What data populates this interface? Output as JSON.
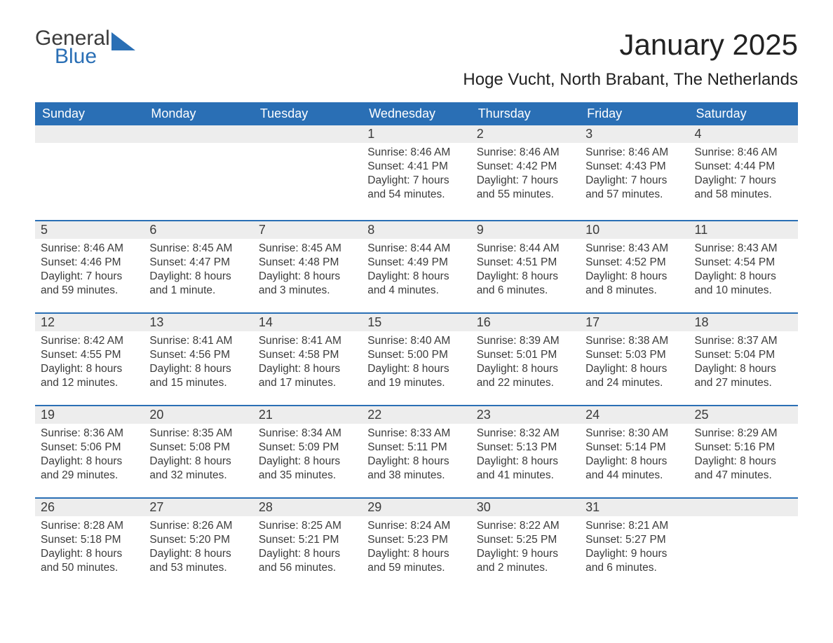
{
  "logo": {
    "word1": "General",
    "word2": "Blue"
  },
  "title": "January 2025",
  "subtitle": "Hoge Vucht, North Brabant, The Netherlands",
  "colors": {
    "header_bg": "#2a6fb5",
    "header_text": "#ffffff",
    "daynum_bg": "#ededed",
    "body_text": "#3b3b3b",
    "page_bg": "#ffffff",
    "row_border": "#2a6fb5"
  },
  "dayNames": [
    "Sunday",
    "Monday",
    "Tuesday",
    "Wednesday",
    "Thursday",
    "Friday",
    "Saturday"
  ],
  "days": [
    {
      "n": 1,
      "sunrise": "8:46 AM",
      "sunset": "4:41 PM",
      "daylight": "7 hours and 54 minutes."
    },
    {
      "n": 2,
      "sunrise": "8:46 AM",
      "sunset": "4:42 PM",
      "daylight": "7 hours and 55 minutes."
    },
    {
      "n": 3,
      "sunrise": "8:46 AM",
      "sunset": "4:43 PM",
      "daylight": "7 hours and 57 minutes."
    },
    {
      "n": 4,
      "sunrise": "8:46 AM",
      "sunset": "4:44 PM",
      "daylight": "7 hours and 58 minutes."
    },
    {
      "n": 5,
      "sunrise": "8:46 AM",
      "sunset": "4:46 PM",
      "daylight": "7 hours and 59 minutes."
    },
    {
      "n": 6,
      "sunrise": "8:45 AM",
      "sunset": "4:47 PM",
      "daylight": "8 hours and 1 minute."
    },
    {
      "n": 7,
      "sunrise": "8:45 AM",
      "sunset": "4:48 PM",
      "daylight": "8 hours and 3 minutes."
    },
    {
      "n": 8,
      "sunrise": "8:44 AM",
      "sunset": "4:49 PM",
      "daylight": "8 hours and 4 minutes."
    },
    {
      "n": 9,
      "sunrise": "8:44 AM",
      "sunset": "4:51 PM",
      "daylight": "8 hours and 6 minutes."
    },
    {
      "n": 10,
      "sunrise": "8:43 AM",
      "sunset": "4:52 PM",
      "daylight": "8 hours and 8 minutes."
    },
    {
      "n": 11,
      "sunrise": "8:43 AM",
      "sunset": "4:54 PM",
      "daylight": "8 hours and 10 minutes."
    },
    {
      "n": 12,
      "sunrise": "8:42 AM",
      "sunset": "4:55 PM",
      "daylight": "8 hours and 12 minutes."
    },
    {
      "n": 13,
      "sunrise": "8:41 AM",
      "sunset": "4:56 PM",
      "daylight": "8 hours and 15 minutes."
    },
    {
      "n": 14,
      "sunrise": "8:41 AM",
      "sunset": "4:58 PM",
      "daylight": "8 hours and 17 minutes."
    },
    {
      "n": 15,
      "sunrise": "8:40 AM",
      "sunset": "5:00 PM",
      "daylight": "8 hours and 19 minutes."
    },
    {
      "n": 16,
      "sunrise": "8:39 AM",
      "sunset": "5:01 PM",
      "daylight": "8 hours and 22 minutes."
    },
    {
      "n": 17,
      "sunrise": "8:38 AM",
      "sunset": "5:03 PM",
      "daylight": "8 hours and 24 minutes."
    },
    {
      "n": 18,
      "sunrise": "8:37 AM",
      "sunset": "5:04 PM",
      "daylight": "8 hours and 27 minutes."
    },
    {
      "n": 19,
      "sunrise": "8:36 AM",
      "sunset": "5:06 PM",
      "daylight": "8 hours and 29 minutes."
    },
    {
      "n": 20,
      "sunrise": "8:35 AM",
      "sunset": "5:08 PM",
      "daylight": "8 hours and 32 minutes."
    },
    {
      "n": 21,
      "sunrise": "8:34 AM",
      "sunset": "5:09 PM",
      "daylight": "8 hours and 35 minutes."
    },
    {
      "n": 22,
      "sunrise": "8:33 AM",
      "sunset": "5:11 PM",
      "daylight": "8 hours and 38 minutes."
    },
    {
      "n": 23,
      "sunrise": "8:32 AM",
      "sunset": "5:13 PM",
      "daylight": "8 hours and 41 minutes."
    },
    {
      "n": 24,
      "sunrise": "8:30 AM",
      "sunset": "5:14 PM",
      "daylight": "8 hours and 44 minutes."
    },
    {
      "n": 25,
      "sunrise": "8:29 AM",
      "sunset": "5:16 PM",
      "daylight": "8 hours and 47 minutes."
    },
    {
      "n": 26,
      "sunrise": "8:28 AM",
      "sunset": "5:18 PM",
      "daylight": "8 hours and 50 minutes."
    },
    {
      "n": 27,
      "sunrise": "8:26 AM",
      "sunset": "5:20 PM",
      "daylight": "8 hours and 53 minutes."
    },
    {
      "n": 28,
      "sunrise": "8:25 AM",
      "sunset": "5:21 PM",
      "daylight": "8 hours and 56 minutes."
    },
    {
      "n": 29,
      "sunrise": "8:24 AM",
      "sunset": "5:23 PM",
      "daylight": "8 hours and 59 minutes."
    },
    {
      "n": 30,
      "sunrise": "8:22 AM",
      "sunset": "5:25 PM",
      "daylight": "9 hours and 2 minutes."
    },
    {
      "n": 31,
      "sunrise": "8:21 AM",
      "sunset": "5:27 PM",
      "daylight": "9 hours and 6 minutes."
    }
  ],
  "labels": {
    "sunrise": "Sunrise: ",
    "sunset": "Sunset: ",
    "daylight": "Daylight: "
  },
  "firstDayOffset": 3,
  "typography": {
    "title_fontsize": 42,
    "subtitle_fontsize": 24,
    "header_fontsize": 18,
    "daynum_fontsize": 18,
    "body_fontsize": 15.5
  }
}
